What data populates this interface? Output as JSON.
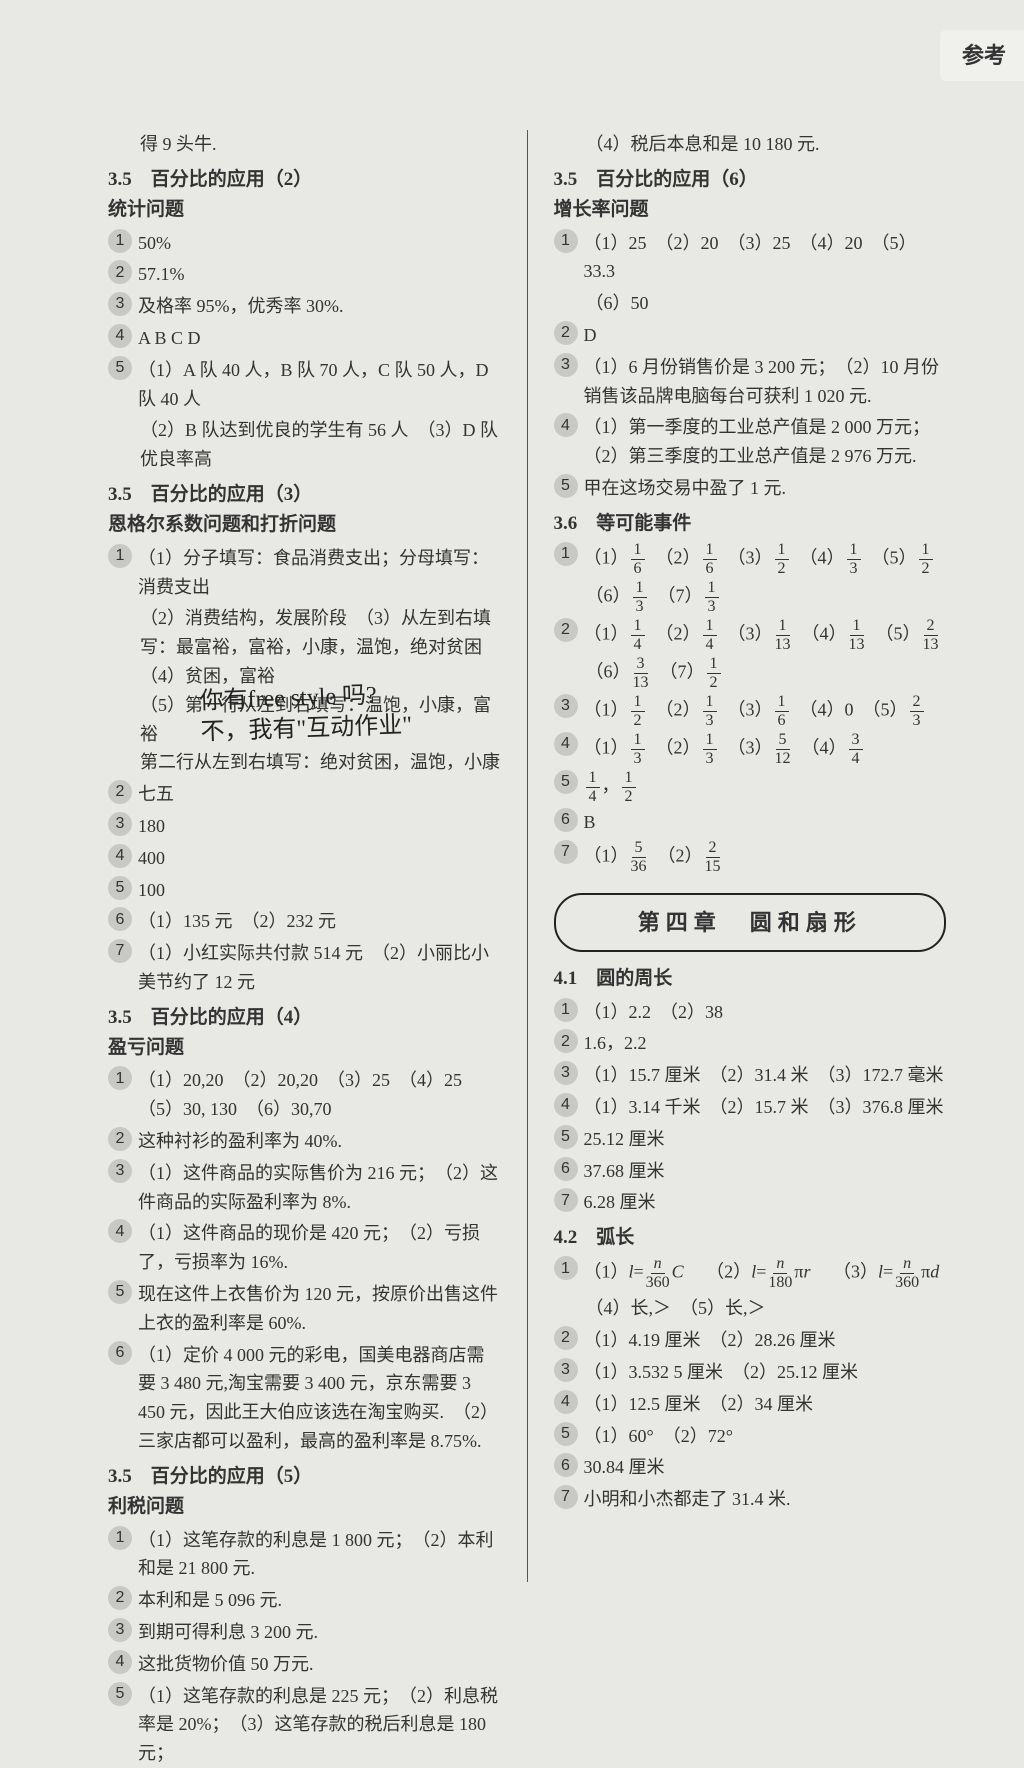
{
  "tab": "参考",
  "handwriting": {
    "l1": "你有free style 吗?",
    "l2": "不，我有\"互动作业\""
  },
  "left": {
    "top": "得 9 头牛.",
    "s35_2": {
      "title": "3.5　百分比的应用（2）",
      "sub": "统计问题"
    },
    "q1": "50%",
    "q2": "57.1%",
    "q3": "及格率 95%，优秀率 30%.",
    "q4": "A B C D",
    "q5a": "（1）A 队 40 人，B 队 70 人，C 队 50 人，D 队 40 人",
    "q5b": "（2）B 队达到优良的学生有 56 人　（3）D 队优良率高",
    "s35_3": {
      "title": "3.5　百分比的应用（3）",
      "sub": "恩格尔系数问题和打折问题"
    },
    "r1a": "（1）分子填写：食品消费支出；分母填写：消费支出",
    "r1b": "（2）消费结构，发展阶段　（3）从左到右填写：最富裕，富裕，小康，温饱，绝对贫困　（4）贫困，富裕",
    "r1c": "（5）第一行从左到右填写：温饱，小康，富裕",
    "r1d": "第二行从左到右填写：绝对贫困，温饱，小康",
    "r2": "七五",
    "r3": "180",
    "r4": "400",
    "r5": "100",
    "r6": "（1）135 元　（2）232 元",
    "r7": "（1）小红实际共付款 514 元　（2）小丽比小美节约了 12 元",
    "s35_4": {
      "title": "3.5　百分比的应用（4）",
      "sub": "盈亏问题"
    },
    "t1": "（1）20,20　（2）20,20　（3）25　（4）25　（5）30, 130　（6）30,70",
    "t2": "这种衬衫的盈利率为 40%.",
    "t3": "（1）这件商品的实际售价为 216 元；　（2）这件商品的实际盈利率为 8%.",
    "t4": "（1）这件商品的现价是 420 元；　（2）亏损了，亏损率为 16%.",
    "t5": "现在这件上衣售价为 120 元，按原价出售这件上衣的盈利率是 60%.",
    "t6": "（1）定价 4 000 元的彩电，国美电器商店需要 3 480 元,淘宝需要 3 400 元，京东需要 3 450 元，因此王大伯应该选在淘宝购买.　（2）三家店都可以盈利，最高的盈利率是 8.75%.",
    "s35_5": {
      "title": "3.5　百分比的应用（5）",
      "sub": "利税问题"
    },
    "u1": "（1）这笔存款的利息是 1 800 元；　（2）本利和是 21 800 元.",
    "u2": "本利和是 5 096 元.",
    "u3": "到期可得利息 3 200 元.",
    "u4": "这批货物价值 50 万元.",
    "u5": "（1）这笔存款的利息是 225 元；　（2）利息税率是 20%；　（3）这笔存款的税后利息是 180 元；"
  },
  "right": {
    "top": "（4）税后本息和是 10 180 元.",
    "s35_6": {
      "title": "3.5　百分比的应用（6）",
      "sub": "增长率问题"
    },
    "a1": "（1）25　（2）20　（3）25　（4）20　（5）33.3",
    "a1b": "（6）50",
    "a2": "D",
    "a3": "（1）6 月份销售价是 3 200 元；　（2）10 月份销售该品牌电脑每台可获利 1 020 元.",
    "a4": "（1）第一季度的工业总产值是 2 000 万元；　（2）第三季度的工业总产值是 2 976 万元.",
    "a5": "甲在这场交易中盈了 1 元.",
    "s36": {
      "title": "3.6　等可能事件"
    },
    "f1": {
      "p": [
        [
          "1",
          "6"
        ],
        [
          "1",
          "6"
        ],
        [
          "1",
          "2"
        ],
        [
          "1",
          "3"
        ],
        [
          "1",
          "2"
        ],
        [
          "1",
          "3"
        ],
        [
          "1",
          "3"
        ]
      ]
    },
    "f2": {
      "p": [
        [
          "1",
          "4"
        ],
        [
          "1",
          "4"
        ],
        [
          "1",
          "13"
        ],
        [
          "1",
          "13"
        ],
        [
          "2",
          "13"
        ],
        [
          "3",
          "13"
        ],
        [
          "1",
          "2"
        ]
      ]
    },
    "f3": {
      "p": [
        [
          "1",
          "2"
        ],
        [
          "1",
          "3"
        ],
        [
          "1",
          "6"
        ],
        [
          "0",
          ""
        ],
        [
          "2",
          "3"
        ]
      ]
    },
    "f4": {
      "p": [
        [
          "1",
          "3"
        ],
        [
          "1",
          "3"
        ],
        [
          "5",
          "12"
        ],
        [
          "3",
          "4"
        ]
      ]
    },
    "f5": {
      "p": [
        [
          "1",
          "4"
        ],
        [
          "1",
          "2"
        ]
      ]
    },
    "f6": "B",
    "f7": {
      "p": [
        [
          "5",
          "36"
        ],
        [
          "2",
          "15"
        ]
      ]
    },
    "chapter": "第四章　圆和扇形",
    "s41": {
      "title": "4.1　圆的周长"
    },
    "c1": "（1）2.2　（2）38",
    "c2": "1.6，2.2",
    "c3": "（1）15.7 厘米　（2）31.4 米　（3）172.7 毫米",
    "c4": "（1）3.14 千米　（2）15.7 米　（3）376.8 厘米",
    "c5": "25.12 厘米",
    "c6": "37.68 厘米",
    "c7": "6.28 厘米",
    "s42": {
      "title": "4.2　弧长"
    },
    "d1_4": "（4）长,＞　（5）长,＞",
    "d2": "（1）4.19 厘米　（2）28.26 厘米",
    "d3": "（1）3.532 5 厘米　（2）25.12 厘米",
    "d4": "（1）12.5 厘米　（2）34 厘米",
    "d5": "（1）60°　（2）72°",
    "d6": "30.84 厘米",
    "d7": "小明和小杰都走了 31.4 米."
  }
}
